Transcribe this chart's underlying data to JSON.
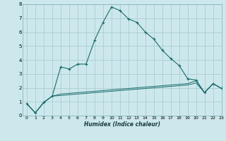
{
  "xlabel": "Humidex (Indice chaleur)",
  "bg_color": "#cde8ec",
  "grid_color": "#aacdd4",
  "line_color": "#1a6b6b",
  "x_main": [
    0,
    1,
    2,
    3,
    4,
    5,
    6,
    7,
    8,
    9,
    10,
    11,
    12,
    13,
    14,
    15,
    16,
    17,
    18,
    19,
    20,
    21,
    22,
    23
  ],
  "y_main": [
    0.85,
    0.2,
    0.95,
    1.4,
    3.5,
    3.35,
    3.7,
    3.7,
    5.4,
    6.7,
    7.8,
    7.55,
    6.95,
    6.7,
    6.0,
    5.5,
    4.7,
    4.1,
    3.6,
    2.65,
    2.55,
    1.65,
    2.3,
    1.95
  ],
  "x_line2": [
    0,
    1,
    2,
    3,
    4,
    5,
    6,
    7,
    8,
    9,
    10,
    11,
    12,
    13,
    14,
    15,
    16,
    17,
    18,
    19,
    20,
    21,
    22,
    23
  ],
  "y_line2": [
    0.85,
    0.2,
    0.95,
    1.4,
    1.55,
    1.6,
    1.65,
    1.7,
    1.75,
    1.8,
    1.85,
    1.9,
    1.95,
    2.0,
    2.05,
    2.1,
    2.15,
    2.2,
    2.25,
    2.3,
    2.5,
    1.65,
    2.3,
    1.95
  ],
  "x_line3": [
    0,
    1,
    2,
    3,
    4,
    5,
    6,
    7,
    8,
    9,
    10,
    11,
    12,
    13,
    14,
    15,
    16,
    17,
    18,
    19,
    20,
    21,
    22,
    23
  ],
  "y_line3": [
    0.85,
    0.2,
    0.95,
    1.4,
    1.45,
    1.5,
    1.55,
    1.6,
    1.65,
    1.7,
    1.75,
    1.8,
    1.85,
    1.9,
    1.95,
    2.0,
    2.05,
    2.1,
    2.15,
    2.2,
    2.35,
    1.65,
    2.3,
    1.95
  ],
  "ylim": [
    0,
    8
  ],
  "xlim": [
    -0.5,
    23
  ],
  "yticks": [
    0,
    1,
    2,
    3,
    4,
    5,
    6,
    7,
    8
  ],
  "xticks": [
    0,
    1,
    2,
    3,
    4,
    5,
    6,
    7,
    8,
    9,
    10,
    11,
    12,
    13,
    14,
    15,
    16,
    17,
    18,
    19,
    20,
    21,
    22,
    23
  ]
}
